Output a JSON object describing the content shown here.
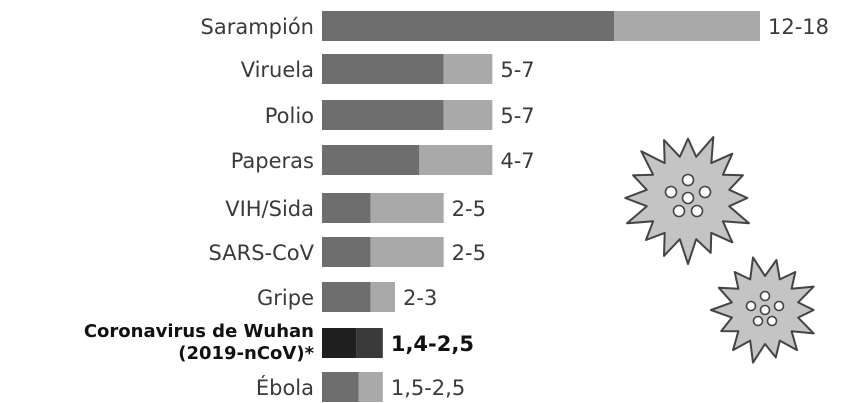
{
  "chart_data": {
    "type": "bar",
    "orientation": "horizontal",
    "stacked_range": true,
    "categories": [
      "Sarampión",
      "Viruela",
      "Polio",
      "Paperas",
      "VIH/Sida",
      "SARS-CoV",
      "Gripe",
      "Coronavirus de Wuhan (2019-nCoV)*",
      "Ébola"
    ],
    "ranges": [
      [
        12,
        18
      ],
      [
        5,
        7
      ],
      [
        5,
        7
      ],
      [
        4,
        7
      ],
      [
        2,
        5
      ],
      [
        2,
        5
      ],
      [
        2,
        3
      ],
      [
        1.4,
        2.5
      ],
      [
        1.5,
        2.5
      ]
    ],
    "value_labels": [
      "12-18",
      "5-7",
      "5-7",
      "4-7",
      "2-5",
      "2-5",
      "2-3",
      "1,4-2,5",
      "1,5-2,5"
    ],
    "highlight_index": 7,
    "title": "",
    "xlabel": "",
    "ylabel": "",
    "xlim": [
      0,
      18
    ],
    "grid": false,
    "legend": "none",
    "colors": {
      "low": "#6e6e6e",
      "high": "#a9a9a9",
      "highlight_low": "#1f1f1f",
      "highlight_high": "#3a3a3a",
      "virus_fill": "#c4c4c4",
      "virus_stroke": "#444444"
    }
  },
  "decoration": {
    "icons": [
      "virus-icon",
      "virus-icon"
    ]
  }
}
